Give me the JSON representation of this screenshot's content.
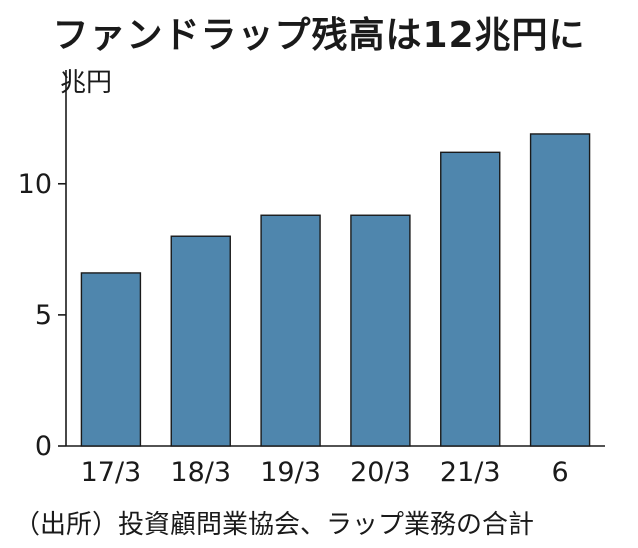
{
  "chart_data": {
    "type": "bar",
    "title": "ファンドラップ残高は12兆円に",
    "ylabel": "兆円",
    "xlabel": "",
    "categories": [
      "17/3",
      "18/3",
      "19/3",
      "20/3",
      "21/3",
      "6"
    ],
    "values": [
      6.6,
      8.0,
      8.8,
      8.8,
      11.2,
      11.9
    ],
    "ylim": [
      0,
      13.5
    ],
    "yticks": [
      0,
      5,
      10
    ],
    "grid": false,
    "legend": "none",
    "bar_color": "#4f86ad",
    "bar_edge_color": "#1a1a1a",
    "source": "（出所）投資顧問業協会、ラップ業務の合計"
  }
}
